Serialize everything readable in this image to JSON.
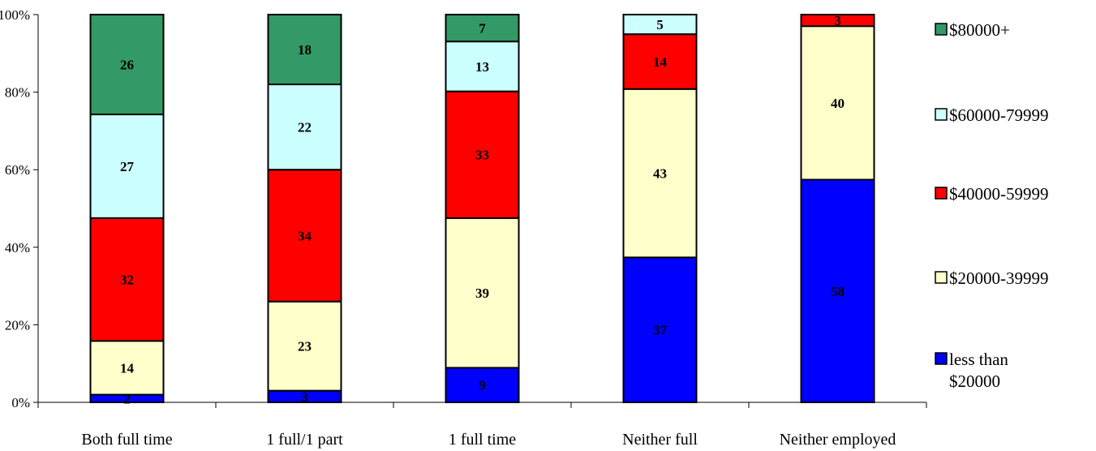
{
  "chart_data": {
    "type": "bar",
    "stacked": true,
    "percent_stacked": true,
    "categories": [
      "Both full time",
      "1 full/1 part",
      "1 full time",
      "Neither full",
      "Neither employed"
    ],
    "series": [
      {
        "name": "less than $20000",
        "legend_lines": [
          "less than",
          "$20000"
        ],
        "color": "#0000ff",
        "values": [
          2,
          3,
          9,
          37,
          58
        ]
      },
      {
        "name": "$20000-39999",
        "legend_lines": [
          "$20000-39999"
        ],
        "color": "#ffffcc",
        "values": [
          14,
          23,
          39,
          43,
          40
        ]
      },
      {
        "name": "$40000-59999",
        "legend_lines": [
          "$40000-59999"
        ],
        "color": "#ff0000",
        "values": [
          32,
          34,
          33,
          14,
          3
        ]
      },
      {
        "name": "$60000-79999",
        "legend_lines": [
          "$60000-79999"
        ],
        "color": "#ccffff",
        "values": [
          27,
          22,
          13,
          5,
          0
        ]
      },
      {
        "name": "$80000+",
        "legend_lines": [
          "$80000+"
        ],
        "color": "#339966",
        "values": [
          26,
          18,
          7,
          0,
          0
        ]
      }
    ],
    "data_labels": [
      [
        "2",
        "14",
        "32",
        "27",
        "26"
      ],
      [
        "3",
        "23",
        "34",
        "22",
        "18"
      ],
      [
        "9",
        "39",
        "33",
        "13",
        "7"
      ],
      [
        "37",
        "43",
        "14",
        "5",
        ""
      ],
      [
        "58",
        "40",
        "3",
        "",
        ""
      ]
    ],
    "y_ticks": [
      0,
      20,
      40,
      60,
      80,
      100
    ],
    "y_tick_labels": [
      "0%",
      "20%",
      "40%",
      "60%",
      "80%",
      "100%"
    ],
    "ylim": [
      0,
      100
    ],
    "title": "",
    "xlabel": "",
    "ylabel": "",
    "grid": false,
    "legend_position": "right"
  }
}
